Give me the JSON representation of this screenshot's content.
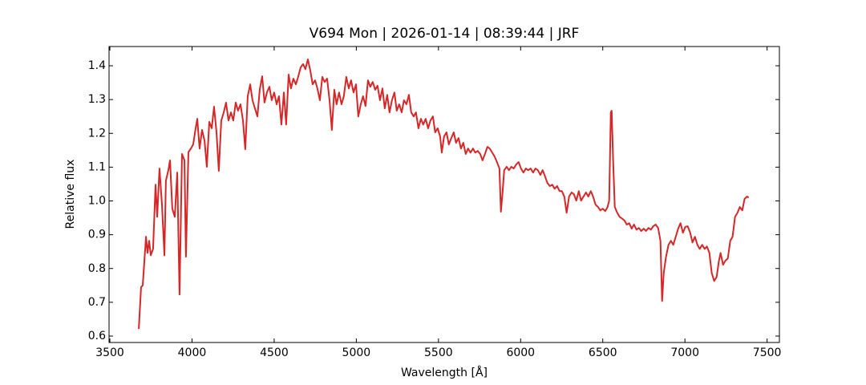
{
  "chart_data": {
    "type": "line",
    "title": "V694 Mon | 2026-01-14 | 08:39:44 | JRF",
    "x_label": "Wavelength [Å]",
    "y_label": "Relative flux",
    "xlim": [
      3495,
      7575
    ],
    "ylim": [
      0.581,
      1.457
    ],
    "xticks": [
      3500,
      4000,
      4500,
      5000,
      5500,
      6000,
      6500,
      7000,
      7500
    ],
    "yticks": [
      0.6,
      0.7,
      0.8,
      0.9,
      {
        "value": 1,
        "label": "1.0"
      },
      1.1,
      1.2,
      1.3,
      1.4
    ],
    "x": [
      3676,
      3690,
      3700,
      3720,
      3729,
      3739,
      3749,
      3763,
      3778,
      3788,
      3802,
      3817,
      3832,
      3841,
      3856,
      3866,
      3880,
      3895,
      3910,
      3924,
      3939,
      3954,
      3963,
      3978,
      3993,
      4007,
      4022,
      4032,
      4046,
      4061,
      4076,
      4090,
      4105,
      4120,
      4134,
      4149,
      4163,
      4178,
      4193,
      4207,
      4222,
      4237,
      4251,
      4266,
      4280,
      4295,
      4310,
      4324,
      4339,
      4354,
      4368,
      4383,
      4398,
      4412,
      4427,
      4441,
      4456,
      4471,
      4485,
      4500,
      4515,
      4529,
      4544,
      4559,
      4573,
      4588,
      4602,
      4617,
      4632,
      4646,
      4661,
      4676,
      4690,
      4705,
      4720,
      4734,
      4749,
      4763,
      4778,
      4793,
      4807,
      4822,
      4837,
      4851,
      4866,
      4880,
      4895,
      4910,
      4924,
      4939,
      4954,
      4968,
      4983,
      4998,
      5012,
      5027,
      5041,
      5056,
      5071,
      5085,
      5100,
      5115,
      5129,
      5144,
      5159,
      5173,
      5188,
      5202,
      5217,
      5232,
      5246,
      5261,
      5276,
      5290,
      5305,
      5320,
      5334,
      5349,
      5363,
      5378,
      5393,
      5407,
      5422,
      5437,
      5451,
      5466,
      5480,
      5495,
      5510,
      5520,
      5534,
      5549,
      5563,
      5578,
      5593,
      5607,
      5622,
      5637,
      5651,
      5666,
      5680,
      5695,
      5710,
      5724,
      5739,
      5754,
      5768,
      5783,
      5798,
      5812,
      5827,
      5841,
      5856,
      5871,
      5880,
      5890,
      5900,
      5915,
      5929,
      5944,
      5958,
      5973,
      5988,
      6002,
      6017,
      6032,
      6046,
      6061,
      6076,
      6090,
      6105,
      6120,
      6134,
      6149,
      6163,
      6178,
      6193,
      6207,
      6222,
      6237,
      6251,
      6266,
      6280,
      6295,
      6310,
      6324,
      6339,
      6354,
      6368,
      6383,
      6398,
      6412,
      6427,
      6441,
      6456,
      6471,
      6485,
      6500,
      6515,
      6529,
      6539,
      6549,
      6554,
      6563,
      6573,
      6588,
      6602,
      6617,
      6632,
      6646,
      6661,
      6676,
      6690,
      6705,
      6720,
      6734,
      6749,
      6763,
      6778,
      6793,
      6807,
      6822,
      6837,
      6851,
      6861,
      6871,
      6885,
      6900,
      6915,
      6929,
      6944,
      6959,
      6973,
      6988,
      7002,
      7017,
      7032,
      7046,
      7061,
      7076,
      7090,
      7105,
      7120,
      7134,
      7149,
      7163,
      7178,
      7193,
      7207,
      7217,
      7232,
      7246,
      7261,
      7276,
      7290,
      7305,
      7320,
      7334,
      7349,
      7363,
      7378,
      7388
    ],
    "series": [
      {
        "name": "V694 Mon",
        "color": "#d62728",
        "values": [
          0.621,
          0.745,
          0.75,
          0.894,
          0.846,
          0.882,
          0.839,
          0.858,
          1.048,
          0.953,
          1.096,
          0.989,
          0.839,
          1.06,
          1.091,
          1.12,
          0.977,
          0.953,
          1.084,
          0.723,
          1.139,
          1.12,
          0.835,
          1.144,
          1.155,
          1.167,
          1.215,
          1.243,
          1.155,
          1.21,
          1.179,
          1.101,
          1.234,
          1.215,
          1.279,
          1.203,
          1.089,
          1.238,
          1.262,
          1.291,
          1.238,
          1.262,
          1.238,
          1.291,
          1.267,
          1.286,
          1.238,
          1.153,
          1.31,
          1.345,
          1.298,
          1.274,
          1.25,
          1.329,
          1.369,
          1.291,
          1.321,
          1.338,
          1.298,
          1.321,
          1.286,
          1.31,
          1.226,
          1.321,
          1.226,
          1.374,
          1.333,
          1.362,
          1.345,
          1.367,
          1.395,
          1.405,
          1.39,
          1.419,
          1.386,
          1.345,
          1.357,
          1.333,
          1.298,
          1.367,
          1.352,
          1.362,
          1.298,
          1.21,
          1.329,
          1.286,
          1.321,
          1.286,
          1.31,
          1.367,
          1.333,
          1.357,
          1.321,
          1.345,
          1.25,
          1.286,
          1.31,
          1.281,
          1.357,
          1.338,
          1.352,
          1.329,
          1.341,
          1.298,
          1.333,
          1.274,
          1.314,
          1.262,
          1.298,
          1.321,
          1.267,
          1.286,
          1.262,
          1.298,
          1.286,
          1.314,
          1.262,
          1.25,
          1.262,
          1.215,
          1.243,
          1.226,
          1.243,
          1.215,
          1.238,
          1.25,
          1.203,
          1.215,
          1.191,
          1.143,
          1.191,
          1.203,
          1.167,
          1.186,
          1.203,
          1.172,
          1.186,
          1.155,
          1.172,
          1.139,
          1.155,
          1.143,
          1.155,
          1.143,
          1.148,
          1.139,
          1.12,
          1.139,
          1.16,
          1.155,
          1.143,
          1.132,
          1.115,
          1.096,
          0.968,
          1.025,
          1.091,
          1.101,
          1.091,
          1.101,
          1.096,
          1.108,
          1.115,
          1.096,
          1.084,
          1.096,
          1.091,
          1.096,
          1.084,
          1.096,
          1.091,
          1.077,
          1.091,
          1.072,
          1.053,
          1.044,
          1.048,
          1.036,
          1.044,
          1.029,
          1.029,
          1.013,
          0.965,
          1.013,
          1.025,
          1.02,
          1.001,
          1.029,
          1.001,
          1.013,
          1.025,
          1.013,
          1.029,
          1.013,
          0.989,
          0.982,
          0.972,
          0.977,
          0.97,
          0.982,
          1.001,
          1.262,
          1.267,
          1.12,
          0.982,
          0.965,
          0.953,
          0.948,
          0.942,
          0.93,
          0.934,
          0.918,
          0.93,
          0.915,
          0.92,
          0.911,
          0.918,
          0.911,
          0.92,
          0.915,
          0.925,
          0.93,
          0.92,
          0.882,
          0.704,
          0.787,
          0.835,
          0.87,
          0.882,
          0.87,
          0.894,
          0.918,
          0.934,
          0.906,
          0.923,
          0.925,
          0.906,
          0.877,
          0.894,
          0.87,
          0.858,
          0.87,
          0.858,
          0.865,
          0.846,
          0.787,
          0.763,
          0.775,
          0.823,
          0.846,
          0.811,
          0.823,
          0.83,
          0.882,
          0.894,
          0.953,
          0.965,
          0.982,
          0.972,
          1.006,
          1.013,
          1.01
        ]
      }
    ]
  }
}
